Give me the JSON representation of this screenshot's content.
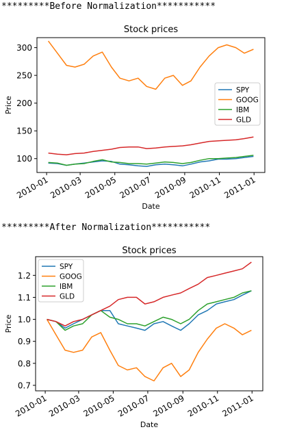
{
  "sections": [
    {
      "heading": "*********Before Normalization***********"
    },
    {
      "heading": "*********After Normalization***********"
    }
  ],
  "chart_data": [
    {
      "type": "line",
      "title": "Stock prices",
      "xlabel": "Date",
      "ylabel": "Price",
      "x_ticks": [
        "2010-01",
        "2010-03",
        "2010-05",
        "2010-07",
        "2010-09",
        "2010-11",
        "2011-01"
      ],
      "y_ticks": [
        100,
        150,
        200,
        250,
        300
      ],
      "ylim": [
        75,
        318
      ],
      "legend_position": "center-right",
      "grid": false,
      "x": [
        "2010-01-04",
        "2010-01-20",
        "2010-02-05",
        "2010-02-20",
        "2010-03-08",
        "2010-03-24",
        "2010-04-09",
        "2010-04-25",
        "2010-05-10",
        "2010-05-26",
        "2010-06-11",
        "2010-06-26",
        "2010-07-12",
        "2010-07-28",
        "2010-08-12",
        "2010-08-28",
        "2010-09-12",
        "2010-09-28",
        "2010-10-14",
        "2010-10-30",
        "2010-11-14",
        "2010-11-30",
        "2010-12-15",
        "2010-12-31"
      ],
      "series": [
        {
          "name": "SPY",
          "color": "#1f77b4",
          "values": [
            92,
            91,
            88,
            90,
            92,
            94,
            96,
            95,
            90,
            89,
            87,
            86,
            89,
            90,
            89,
            87,
            90,
            94,
            96,
            99,
            99,
            100,
            102,
            104
          ]
        },
        {
          "name": "GOOG",
          "color": "#ff7f0e",
          "values": [
            312,
            290,
            268,
            265,
            270,
            285,
            292,
            265,
            245,
            240,
            245,
            230,
            225,
            245,
            250,
            232,
            240,
            265,
            285,
            300,
            305,
            300,
            290,
            297
          ]
        },
        {
          "name": "IBM",
          "color": "#2ca02c",
          "values": [
            93,
            92,
            88,
            90,
            91,
            95,
            98,
            94,
            93,
            91,
            91,
            90,
            92,
            94,
            93,
            91,
            93,
            97,
            100,
            100,
            101,
            102,
            104,
            106
          ]
        },
        {
          "name": "GLD",
          "color": "#d62728",
          "values": [
            110,
            108,
            107,
            109,
            110,
            113,
            115,
            117,
            120,
            121,
            121,
            118,
            119,
            121,
            122,
            123,
            125,
            128,
            131,
            132,
            133,
            134,
            136,
            139
          ]
        }
      ]
    },
    {
      "type": "line",
      "title": "Stock prices",
      "xlabel": "Date",
      "ylabel": "Price",
      "x_ticks": [
        "2010-01",
        "2010-03",
        "2010-05",
        "2010-07",
        "2010-09",
        "2010-11",
        "2011-01"
      ],
      "y_ticks": [
        "0.7",
        "0.8",
        "0.9",
        "1.0",
        "1.1",
        "1.2"
      ],
      "ylim": [
        0.675,
        1.285
      ],
      "legend_position": "upper-left",
      "grid": false,
      "x": [
        "2010-01-04",
        "2010-01-20",
        "2010-02-05",
        "2010-02-20",
        "2010-03-08",
        "2010-03-24",
        "2010-04-09",
        "2010-04-25",
        "2010-05-10",
        "2010-05-26",
        "2010-06-11",
        "2010-06-26",
        "2010-07-12",
        "2010-07-28",
        "2010-08-12",
        "2010-08-28",
        "2010-09-12",
        "2010-09-28",
        "2010-10-14",
        "2010-10-30",
        "2010-11-14",
        "2010-11-30",
        "2010-12-15",
        "2010-12-31"
      ],
      "series": [
        {
          "name": "SPY",
          "color": "#1f77b4",
          "values": [
            1.0,
            0.99,
            0.96,
            0.98,
            1.0,
            1.02,
            1.04,
            1.04,
            0.98,
            0.97,
            0.96,
            0.95,
            0.98,
            0.99,
            0.97,
            0.95,
            0.98,
            1.02,
            1.04,
            1.07,
            1.08,
            1.09,
            1.11,
            1.13
          ]
        },
        {
          "name": "GOOG",
          "color": "#ff7f0e",
          "values": [
            1.0,
            0.93,
            0.86,
            0.85,
            0.86,
            0.92,
            0.94,
            0.86,
            0.79,
            0.77,
            0.78,
            0.74,
            0.72,
            0.78,
            0.8,
            0.74,
            0.77,
            0.85,
            0.91,
            0.96,
            0.98,
            0.96,
            0.93,
            0.95
          ]
        },
        {
          "name": "IBM",
          "color": "#2ca02c",
          "values": [
            1.0,
            0.99,
            0.95,
            0.97,
            0.98,
            1.02,
            1.04,
            1.01,
            1.0,
            0.98,
            0.98,
            0.97,
            0.99,
            1.01,
            1.0,
            0.98,
            1.0,
            1.04,
            1.07,
            1.08,
            1.09,
            1.1,
            1.12,
            1.13
          ]
        },
        {
          "name": "GLD",
          "color": "#d62728",
          "values": [
            1.0,
            0.99,
            0.97,
            0.99,
            1.0,
            1.02,
            1.04,
            1.06,
            1.09,
            1.1,
            1.1,
            1.07,
            1.08,
            1.1,
            1.11,
            1.12,
            1.14,
            1.16,
            1.19,
            1.2,
            1.21,
            1.22,
            1.23,
            1.26
          ]
        }
      ]
    }
  ]
}
